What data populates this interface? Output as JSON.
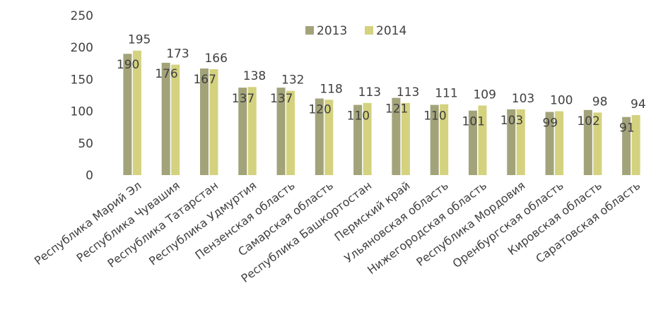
{
  "chart_data": {
    "type": "bar",
    "title": "",
    "xlabel": "",
    "ylabel": "",
    "ylim": [
      0,
      250
    ],
    "yticks": [
      0,
      50,
      100,
      150,
      200,
      250
    ],
    "grid": false,
    "legend_position": "top",
    "categories": [
      "Республика Марий Эл",
      "Республика Чувашия",
      "Республика Татарстан",
      "Республика Удмуртия",
      "Пензенская область",
      "Самарская область",
      "Республика Башкортостан",
      "Пермский край",
      "Ульяновская область",
      "Нижегородская область",
      "Республика Мордовия",
      "Оренбургская область",
      "Кировская область",
      "Саратовская область"
    ],
    "series": [
      {
        "name": "2013",
        "color": "#a3a37a",
        "values": [
          190,
          176,
          167,
          137,
          137,
          120,
          110,
          121,
          110,
          101,
          103,
          99,
          102,
          91
        ]
      },
      {
        "name": "2014",
        "color": "#d4d27e",
        "values": [
          195,
          173,
          166,
          138,
          132,
          118,
          113,
          113,
          111,
          109,
          103,
          100,
          98,
          94
        ]
      }
    ]
  }
}
